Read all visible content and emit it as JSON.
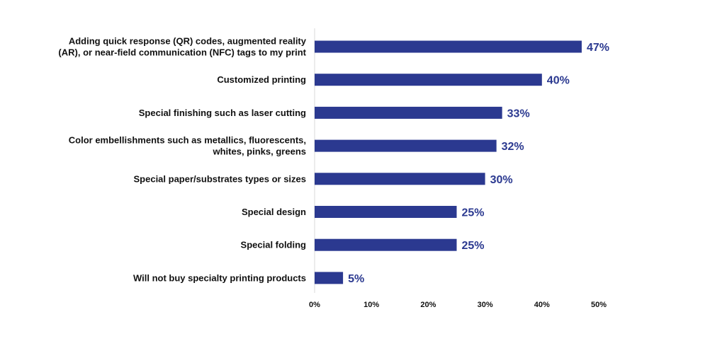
{
  "chart_data": {
    "type": "bar",
    "orientation": "horizontal",
    "title": "",
    "xlabel": "",
    "ylabel": "",
    "xlim": [
      0,
      50
    ],
    "grid": false,
    "legend": "none",
    "color": "#2b3990",
    "categories": [
      [
        "Adding quick response (QR) codes, augmented reality",
        "(AR), or near-field communication (NFC) tags to my print"
      ],
      [
        "Customized printing"
      ],
      [
        "Special finishing such as laser cutting"
      ],
      [
        "Color embellishments such as metallics, fluorescents,",
        "whites, pinks, greens"
      ],
      [
        "Special paper/substrates types or sizes"
      ],
      [
        "Special design"
      ],
      [
        "Special folding"
      ],
      [
        "Will not buy specialty printing products"
      ]
    ],
    "values": [
      47,
      40,
      33,
      32,
      30,
      25,
      25,
      5
    ],
    "value_labels": [
      "47%",
      "40%",
      "33%",
      "32%",
      "30%",
      "25%",
      "25%",
      "5%"
    ],
    "ticks": [
      0,
      10,
      20,
      30,
      40,
      50
    ],
    "tick_labels": [
      "0%",
      "10%",
      "20%",
      "30%",
      "40%",
      "50%"
    ]
  }
}
